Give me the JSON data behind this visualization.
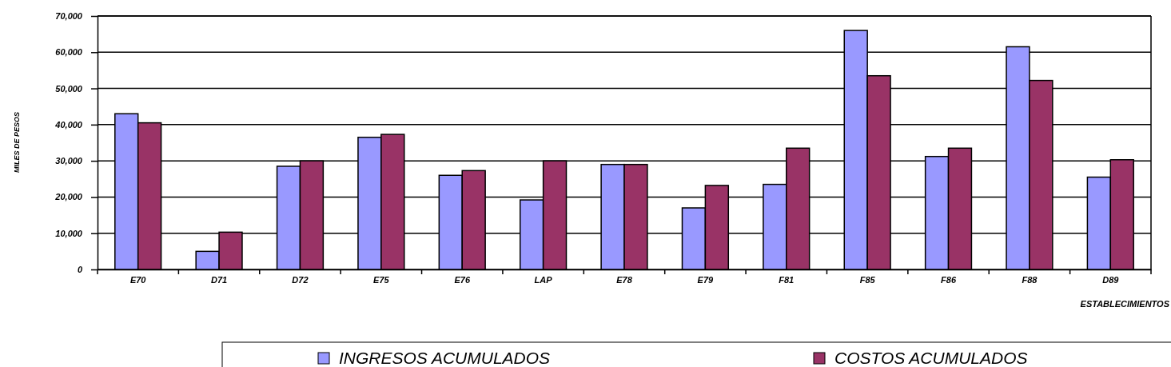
{
  "chart_data": {
    "type": "bar",
    "xlabel": "ESTABLECIMIENTOS",
    "ylabel": "MILES DE PESOS",
    "categories": [
      "E70",
      "D71",
      "D72",
      "E75",
      "E76",
      "LAP",
      "E78",
      "E79",
      "F81",
      "F85",
      "F86",
      "F88",
      "D89"
    ],
    "series": [
      {
        "name": "INGRESOS ACUMULADOS",
        "color": "#9999ff",
        "values": [
          43000,
          5000,
          28500,
          36500,
          26000,
          19200,
          29000,
          17000,
          23500,
          66000,
          31200,
          61500,
          25500
        ]
      },
      {
        "name": "COSTOS ACUMULADOS",
        "color": "#993366",
        "values": [
          40500,
          10300,
          30000,
          37300,
          27300,
          30000,
          29000,
          23200,
          33500,
          53500,
          33500,
          52200,
          30300
        ]
      }
    ],
    "ylim": [
      0,
      70000
    ],
    "yticks": [
      {
        "value": 0,
        "label": "0"
      },
      {
        "value": 10000,
        "label": "10,000"
      },
      {
        "value": 20000,
        "label": "20,000"
      },
      {
        "value": 30000,
        "label": "30,000"
      },
      {
        "value": 40000,
        "label": "40,000"
      },
      {
        "value": 50000,
        "label": "50,000"
      },
      {
        "value": 60000,
        "label": "60,000"
      },
      {
        "value": 70000,
        "label": "70,000"
      }
    ],
    "grid": "y",
    "legend": "bottom"
  }
}
